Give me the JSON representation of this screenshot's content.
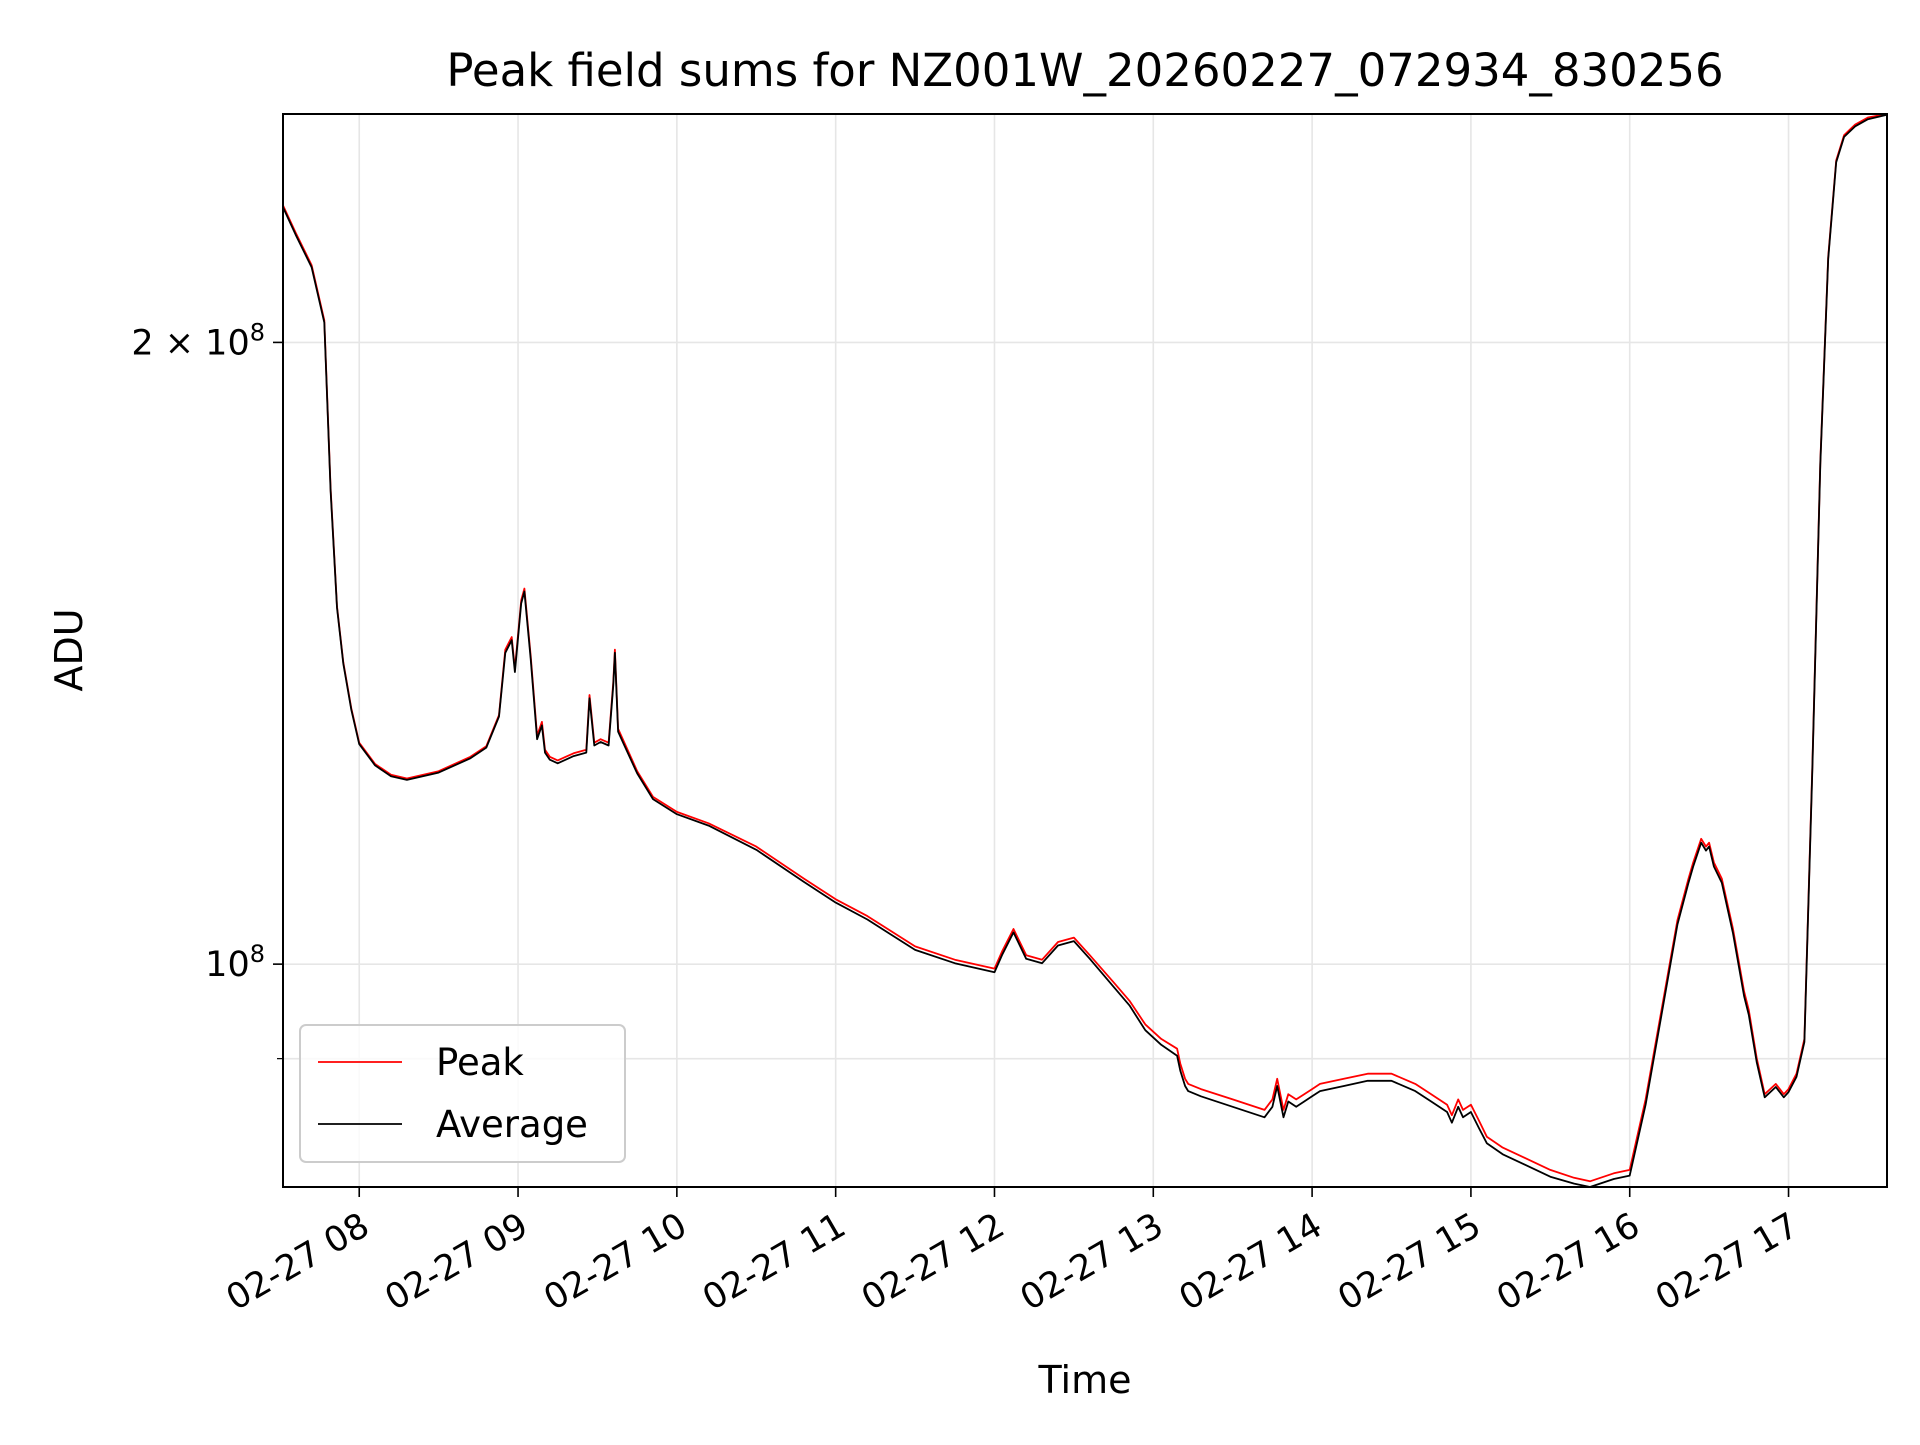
{
  "chart_data": {
    "type": "line",
    "title": "Peak field sums for NZ001W_20260227_072934_830256",
    "xlabel": "Time",
    "ylabel": "ADU",
    "y_scale": "log",
    "x_unit": "hours",
    "xlim": [
      7.52,
      17.62
    ],
    "ylim": [
      78000000,
      258000000
    ],
    "grid": true,
    "legend_position": "lower-left",
    "x_ticks": [
      {
        "value": 8,
        "label": "02-27 08"
      },
      {
        "value": 9,
        "label": "02-27 09"
      },
      {
        "value": 10,
        "label": "02-27 10"
      },
      {
        "value": 11,
        "label": "02-27 11"
      },
      {
        "value": 12,
        "label": "02-27 12"
      },
      {
        "value": 13,
        "label": "02-27 13"
      },
      {
        "value": 14,
        "label": "02-27 14"
      },
      {
        "value": 15,
        "label": "02-27 15"
      },
      {
        "value": 16,
        "label": "02-27 16"
      },
      {
        "value": 17,
        "label": "02-27 17"
      }
    ],
    "y_major_ticks": [
      {
        "value": 100000000,
        "label_base": "10",
        "label_exp": "8"
      },
      {
        "value": 200000000,
        "label_base": "2 × 10",
        "label_exp": "8"
      }
    ],
    "y_minor_ticks": [
      90000000
    ],
    "series": [
      {
        "name": "Peak",
        "color": "#ff0000",
        "x": [
          7.52,
          7.6,
          7.7,
          7.78,
          7.82,
          7.86,
          7.9,
          7.95,
          8.0,
          8.1,
          8.2,
          8.3,
          8.5,
          8.7,
          8.8,
          8.88,
          8.92,
          8.96,
          8.98,
          9.02,
          9.04,
          9.08,
          9.12,
          9.15,
          9.17,
          9.2,
          9.25,
          9.3,
          9.35,
          9.43,
          9.45,
          9.48,
          9.52,
          9.57,
          9.6,
          9.61,
          9.63,
          9.67,
          9.75,
          9.85,
          10.0,
          10.2,
          10.5,
          10.8,
          11.0,
          11.2,
          11.5,
          11.75,
          12.0,
          12.05,
          12.12,
          12.2,
          12.3,
          12.4,
          12.5,
          12.6,
          12.75,
          12.85,
          12.95,
          13.05,
          13.15,
          13.17,
          13.2,
          13.22,
          13.3,
          13.5,
          13.7,
          13.75,
          13.78,
          13.82,
          13.85,
          13.9,
          13.95,
          14.0,
          14.05,
          14.2,
          14.35,
          14.5,
          14.65,
          14.75,
          14.85,
          14.88,
          14.92,
          14.95,
          15.0,
          15.05,
          15.1,
          15.2,
          15.35,
          15.5,
          15.65,
          15.75,
          15.9,
          16.0,
          16.1,
          16.2,
          16.3,
          16.37,
          16.4,
          16.45,
          16.48,
          16.5,
          16.53,
          16.58,
          16.65,
          16.72,
          16.75,
          16.8,
          16.85,
          16.92,
          16.97,
          17.0,
          17.05,
          17.1,
          17.15,
          17.2,
          17.25,
          17.3,
          17.35,
          17.42,
          17.5,
          17.62
        ],
        "values": [
          233000000,
          226000000,
          218000000,
          205000000,
          170000000,
          149000000,
          140000000,
          133000000,
          128000000,
          125000000,
          123500000,
          123000000,
          124000000,
          126000000,
          127500000,
          132000000,
          142000000,
          144000000,
          139000000,
          150000000,
          152000000,
          141000000,
          129000000,
          131000000,
          127000000,
          126000000,
          125500000,
          126000000,
          126500000,
          127000000,
          135000000,
          128000000,
          128500000,
          128000000,
          137000000,
          142000000,
          130000000,
          128000000,
          124000000,
          120500000,
          118500000,
          117000000,
          114000000,
          110000000,
          107500000,
          105500000,
          102000000,
          100500000,
          99500000,
          101500000,
          104000000,
          101000000,
          100500000,
          102500000,
          103000000,
          101000000,
          98000000,
          96000000,
          93500000,
          92000000,
          91000000,
          89500000,
          88000000,
          87500000,
          87000000,
          86000000,
          85000000,
          86000000,
          88000000,
          85000000,
          86500000,
          86000000,
          86500000,
          87000000,
          87500000,
          88000000,
          88500000,
          88500000,
          87500000,
          86500000,
          85500000,
          84500000,
          86000000,
          85000000,
          85500000,
          84000000,
          82500000,
          81500000,
          80500000,
          79500000,
          78800000,
          78500000,
          79200000,
          79500000,
          86000000,
          95000000,
          105000000,
          110000000,
          112000000,
          115000000,
          114000000,
          114500000,
          112000000,
          110000000,
          104000000,
          97000000,
          95000000,
          90000000,
          86500000,
          87500000,
          86500000,
          87000000,
          88500000,
          92000000,
          125000000,
          175000000,
          220000000,
          245000000,
          252000000,
          255000000,
          257000000,
          258000000
        ]
      },
      {
        "name": "Average",
        "color": "#000000",
        "x": [
          7.52,
          7.6,
          7.7,
          7.78,
          7.82,
          7.86,
          7.9,
          7.95,
          8.0,
          8.1,
          8.2,
          8.3,
          8.5,
          8.7,
          8.8,
          8.88,
          8.92,
          8.96,
          8.98,
          9.02,
          9.04,
          9.08,
          9.12,
          9.15,
          9.17,
          9.2,
          9.25,
          9.3,
          9.35,
          9.43,
          9.45,
          9.48,
          9.52,
          9.57,
          9.6,
          9.61,
          9.63,
          9.67,
          9.75,
          9.85,
          10.0,
          10.2,
          10.5,
          10.8,
          11.0,
          11.2,
          11.5,
          11.75,
          12.0,
          12.05,
          12.12,
          12.2,
          12.3,
          12.4,
          12.5,
          12.6,
          12.75,
          12.85,
          12.95,
          13.05,
          13.15,
          13.17,
          13.2,
          13.22,
          13.3,
          13.5,
          13.7,
          13.75,
          13.78,
          13.82,
          13.85,
          13.9,
          13.95,
          14.0,
          14.05,
          14.2,
          14.35,
          14.5,
          14.65,
          14.75,
          14.85,
          14.88,
          14.92,
          14.95,
          15.0,
          15.05,
          15.1,
          15.2,
          15.35,
          15.5,
          15.65,
          15.75,
          15.9,
          16.0,
          16.1,
          16.2,
          16.3,
          16.37,
          16.4,
          16.45,
          16.48,
          16.5,
          16.53,
          16.58,
          16.65,
          16.72,
          16.75,
          16.8,
          16.85,
          16.92,
          16.97,
          17.0,
          17.05,
          17.1,
          17.15,
          17.2,
          17.25,
          17.3,
          17.35,
          17.42,
          17.5,
          17.62
        ],
        "values": [
          232500000,
          225500000,
          217500000,
          204500000,
          169500000,
          148800000,
          139800000,
          132800000,
          127800000,
          124800000,
          123300000,
          122800000,
          123800000,
          125800000,
          127300000,
          131800000,
          141500000,
          143500000,
          138500000,
          149500000,
          151500000,
          140500000,
          128500000,
          130500000,
          126600000,
          125600000,
          125100000,
          125600000,
          126100000,
          126600000,
          134500000,
          127600000,
          128100000,
          127600000,
          136500000,
          141500000,
          129600000,
          127600000,
          123700000,
          120200000,
          118200000,
          116700000,
          113600000,
          109600000,
          107100000,
          105100000,
          101600000,
          100100000,
          99100000,
          101100000,
          103600000,
          100600000,
          100100000,
          102100000,
          102600000,
          100600000,
          97500000,
          95500000,
          92900000,
          91400000,
          90300000,
          88800000,
          87300000,
          86800000,
          86300000,
          85300000,
          84300000,
          85300000,
          87300000,
          84300000,
          85800000,
          85300000,
          85800000,
          86300000,
          86800000,
          87300000,
          87800000,
          87800000,
          86800000,
          85800000,
          84800000,
          83800000,
          85300000,
          84300000,
          84800000,
          83300000,
          81900000,
          80900000,
          79900000,
          78900000,
          78300000,
          78000000,
          78700000,
          79000000,
          85500000,
          94500000,
          104500000,
          109500000,
          111500000,
          114500000,
          113500000,
          114000000,
          111500000,
          109500000,
          103500000,
          96500000,
          94500000,
          89600000,
          86200000,
          87200000,
          86200000,
          86700000,
          88200000,
          91700000,
          124500000,
          174500000,
          219500000,
          244500000,
          251500000,
          254500000,
          256500000,
          257800000
        ]
      }
    ]
  }
}
